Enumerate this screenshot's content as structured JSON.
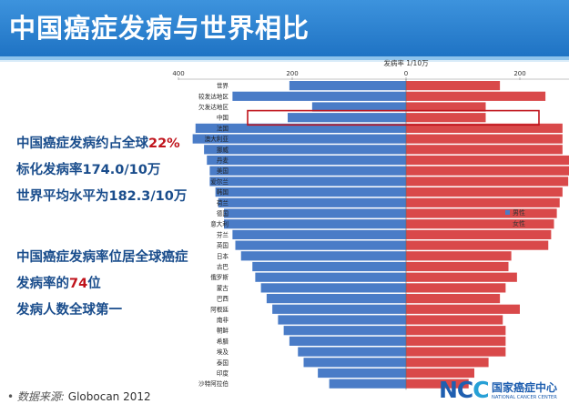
{
  "header": {
    "title": "中国癌症发病与世界相比"
  },
  "summary": {
    "line1_prefix": "中国癌症发病约占全球",
    "line1_highlight": "22%",
    "line2": "标化发病率174.0/10万",
    "line3": "世界平均水平为182.3/10万",
    "line4": "中国癌症发病率位居全球癌症",
    "line5_prefix": "发病率的",
    "line5_highlight": "74",
    "line5_suffix": "位",
    "line6": "发病人数全球第一"
  },
  "source": {
    "label": "数据来源:",
    "value": "Globocan 2012"
  },
  "logo": {
    "mark": "NCC",
    "name_cn": "国家癌症中心",
    "name_en": "NATIONAL CANCER CENTER"
  },
  "colors": {
    "male": "#4a7cc7",
    "female": "#d9494a",
    "highlight_box": "#c0141c",
    "banner": "#2b7fd0"
  },
  "chart_data": {
    "type": "bar",
    "orientation": "horizontal-butterfly",
    "title": "发病率  1/10万",
    "categories": [
      "世界",
      "较发达地区",
      "欠发达地区",
      "中国",
      "法国",
      "澳大利亚",
      "挪威",
      "丹麦",
      "美国",
      "爱尔兰",
      "韩国",
      "荷兰",
      "德国",
      "意大利",
      "芬兰",
      "英国",
      "日本",
      "古巴",
      "俄罗斯",
      "蒙古",
      "巴西",
      "阿根廷",
      "南非",
      "朝鲜",
      "希腊",
      "埃及",
      "泰国",
      "印度",
      "沙特阿拉伯"
    ],
    "series": [
      {
        "name": "男性",
        "side": "left",
        "values": [
          205,
          305,
          165,
          208,
          370,
          375,
          355,
          350,
          345,
          345,
          335,
          330,
          320,
          320,
          305,
          300,
          290,
          270,
          265,
          255,
          245,
          235,
          225,
          215,
          205,
          190,
          180,
          155,
          135
        ]
      },
      {
        "name": "女性",
        "side": "right",
        "values": [
          165,
          245,
          140,
          140,
          275,
          275,
          275,
          300,
          290,
          285,
          275,
          270,
          265,
          260,
          255,
          250,
          185,
          180,
          195,
          175,
          165,
          200,
          170,
          175,
          175,
          175,
          145,
          120,
          110
        ]
      }
    ],
    "x_ticks": [
      400,
      200,
      0,
      200,
      400
    ],
    "xlim": [
      -400,
      400
    ],
    "highlight_category": "中国",
    "legend_position": "right"
  }
}
